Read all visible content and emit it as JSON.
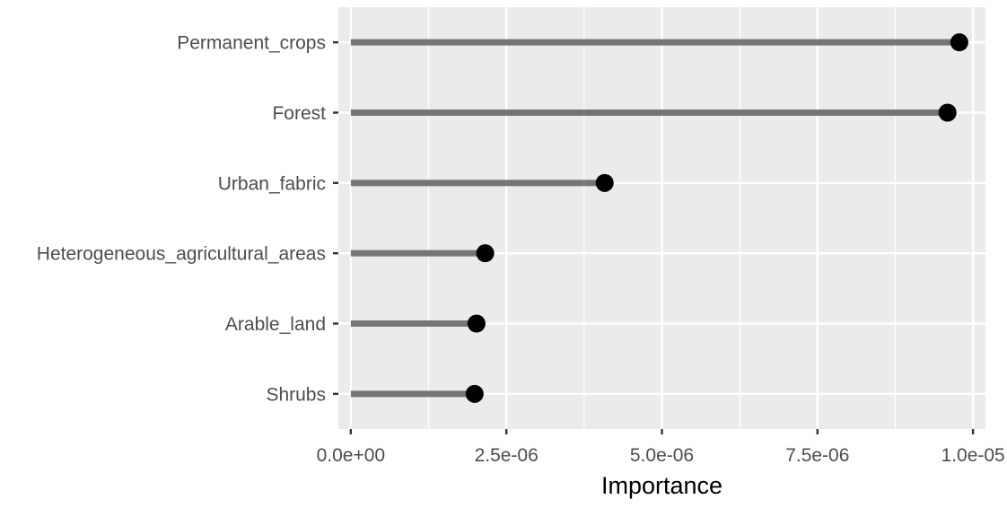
{
  "chart_data": {
    "type": "lollipop",
    "title": "",
    "xlabel": "Importance",
    "ylabel": "",
    "categories": [
      "Permanent_crops",
      "Forest",
      "Urban_fabric",
      "Heterogeneous_agricultural_areas",
      "Arable_land",
      "Shrubs"
    ],
    "values": [
      9.78e-06,
      9.59e-06,
      4.08e-06,
      2.16e-06,
      2.02e-06,
      1.99e-06
    ],
    "xlim": [
      -2e-07,
      1.02e-05
    ],
    "x_ticks": [
      0,
      2.5e-06,
      5e-06,
      7.5e-06,
      1e-05
    ],
    "x_tick_labels": [
      "0.0e+00",
      "2.5e-06",
      "5.0e-06",
      "7.5e-06",
      "1.0e-05"
    ],
    "grid": true,
    "colors": {
      "panel_background": "#ebebeb",
      "grid": "#ffffff",
      "stem": "#757575",
      "point": "#000000",
      "axis_text": "#4d4d4d",
      "axis_title": "#000000"
    }
  }
}
